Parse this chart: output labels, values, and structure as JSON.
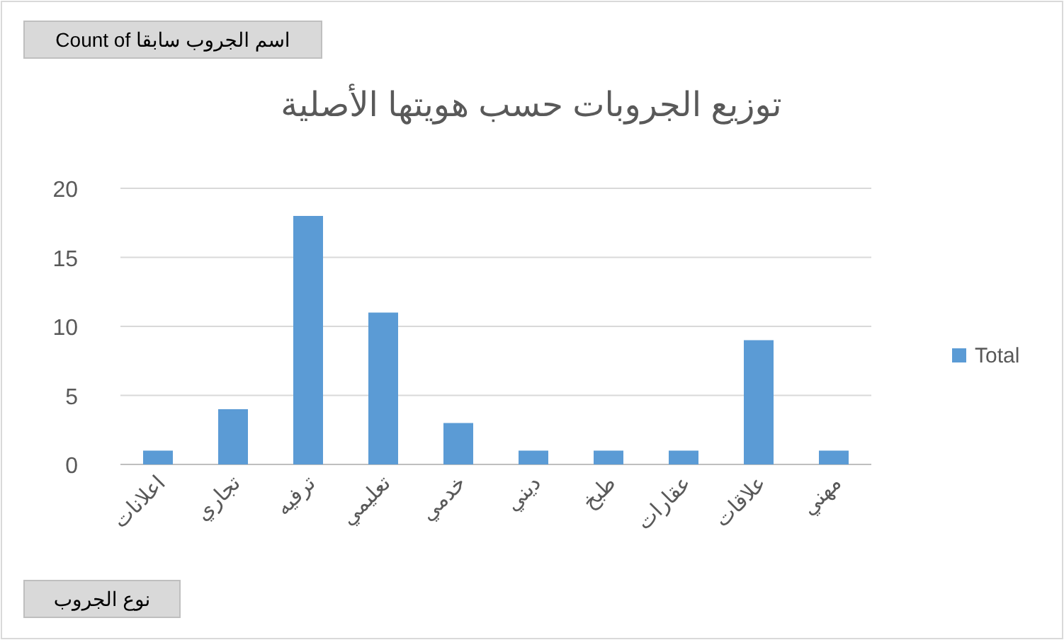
{
  "chart_data": {
    "type": "bar",
    "title": "توزيع الجروبات حسب هويتها الأصلية",
    "categories": [
      "اعلانات",
      "تجاري",
      "ترفيه",
      "تعليمي",
      "خدمي",
      "ديني",
      "طبخ",
      "عقارات",
      "علاقات",
      "مهني"
    ],
    "series": [
      {
        "name": "Total",
        "color": "#5b9bd5",
        "values": [
          1,
          4,
          18,
          11,
          3,
          1,
          1,
          1,
          9,
          1
        ]
      }
    ],
    "ylim": [
      0,
      20
    ],
    "yticks": [
      0,
      5,
      10,
      15,
      20
    ],
    "grid": "y",
    "legend": "right",
    "annotations": [
      "Count of اسم الجروب سابقا",
      "نوع الجروب"
    ]
  }
}
